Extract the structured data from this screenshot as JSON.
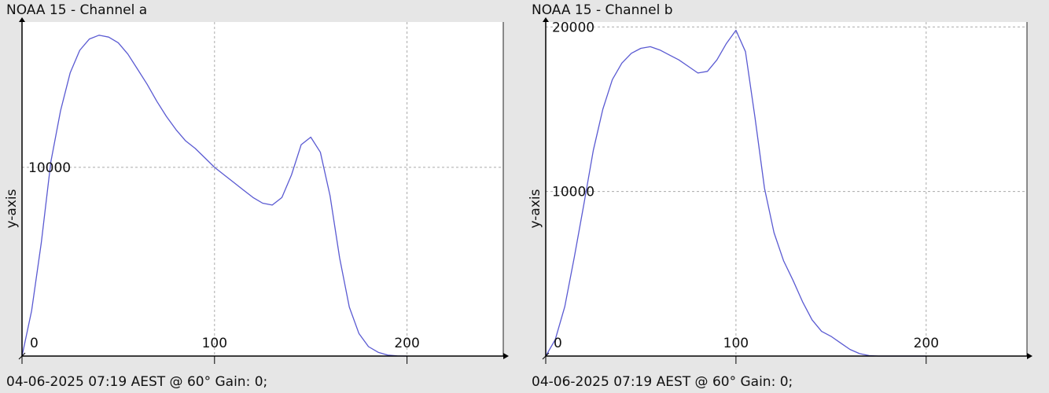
{
  "charts": [
    {
      "title": "NOAA 15 - Channel a",
      "footer": "04-06-2025 07:19 AEST @ 60° Gain: 0;",
      "chart_data": {
        "type": "line",
        "title": "NOAA 15 - Channel a",
        "xlabel": "",
        "ylabel": "y-axis",
        "xlim": [
          0,
          250
        ],
        "ylim": [
          0,
          17700
        ],
        "x_ticks": [
          0,
          100,
          200
        ],
        "y_ticks": [
          10000
        ],
        "grid": true,
        "series_color": "#5a5ad2",
        "x": [
          0,
          5,
          10,
          15,
          20,
          25,
          30,
          35,
          40,
          45,
          50,
          55,
          60,
          65,
          70,
          75,
          80,
          85,
          90,
          95,
          100,
          105,
          110,
          115,
          120,
          125,
          130,
          135,
          140,
          145,
          150,
          155,
          160,
          165,
          170,
          175,
          180,
          185,
          190,
          195,
          200
        ],
        "y": [
          0,
          2400,
          6000,
          10300,
          13000,
          15000,
          16200,
          16800,
          17000,
          16900,
          16600,
          16000,
          15200,
          14400,
          13500,
          12700,
          12000,
          11400,
          11000,
          10500,
          10000,
          9600,
          9200,
          8800,
          8400,
          8100,
          8000,
          8400,
          9600,
          11200,
          11600,
          10800,
          8500,
          5200,
          2600,
          1200,
          500,
          200,
          50,
          10,
          0
        ]
      }
    },
    {
      "title": "NOAA 15 - Channel b",
      "footer": "04-06-2025 07:19 AEST @ 60° Gain: 0;",
      "chart_data": {
        "type": "line",
        "title": "NOAA 15 - Channel b",
        "xlabel": "",
        "ylabel": "y-axis",
        "xlim": [
          0,
          253
        ],
        "ylim": [
          0,
          20300
        ],
        "x_ticks": [
          0,
          100,
          200
        ],
        "y_ticks": [
          10000,
          20000
        ],
        "grid": true,
        "series_color": "#5a5ad2",
        "x": [
          0,
          5,
          10,
          15,
          20,
          25,
          30,
          35,
          40,
          45,
          50,
          55,
          60,
          65,
          70,
          75,
          80,
          85,
          90,
          95,
          100,
          105,
          110,
          115,
          120,
          125,
          130,
          135,
          140,
          145,
          150,
          155,
          160,
          165,
          170,
          175,
          180,
          185,
          190,
          195,
          200
        ],
        "y": [
          0,
          1000,
          3000,
          6000,
          9200,
          12500,
          15000,
          16800,
          17800,
          18400,
          18700,
          18800,
          18600,
          18300,
          18000,
          17600,
          17200,
          17300,
          18000,
          19000,
          19800,
          18500,
          14500,
          10200,
          7500,
          5800,
          4600,
          3300,
          2200,
          1500,
          1200,
          800,
          400,
          150,
          30,
          0,
          0,
          0,
          0,
          0,
          0
        ]
      }
    }
  ]
}
